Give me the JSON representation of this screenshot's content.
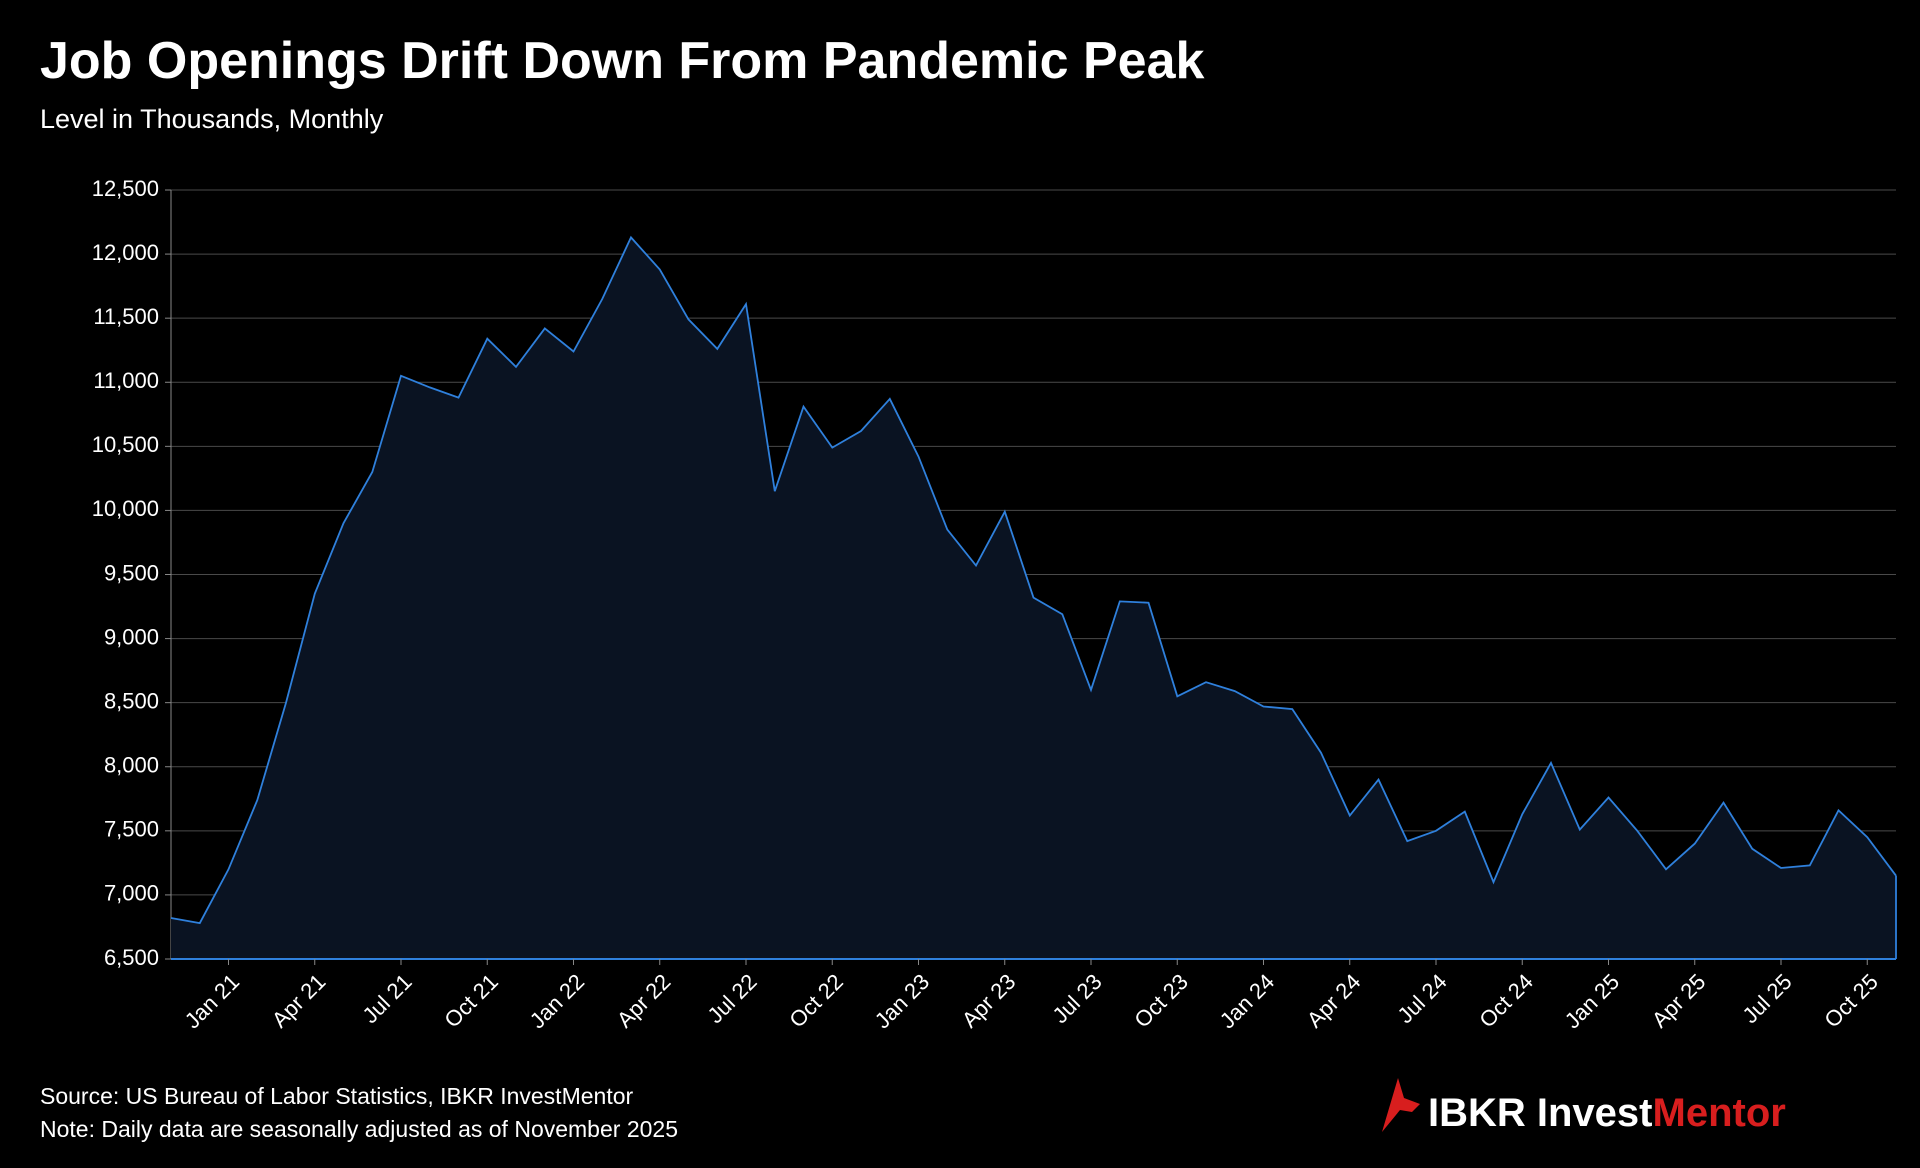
{
  "chart_data": {
    "type": "area",
    "title": "Job Openings Drift Down From Pandemic Peak",
    "subtitle": "Level in Thousands, Monthly",
    "source": "Source: US Bureau of Labor Statistics, IBKR InvestMentor",
    "note": "Note: Daily data are seasonally adjusted as of November  2025",
    "logo": {
      "first": "IBKR Invest",
      "second": "Mentor"
    },
    "categories": [
      null,
      null,
      "Jan 21",
      null,
      null,
      "Apr 21",
      null,
      null,
      "Jul 21",
      null,
      null,
      "Oct 21",
      null,
      null,
      "Jan 22",
      null,
      null,
      "Apr 22",
      null,
      null,
      "Jul 22",
      null,
      null,
      "Oct 22",
      null,
      null,
      "Jan 23",
      null,
      null,
      "Apr 23",
      null,
      null,
      "Jul 23",
      null,
      null,
      "Oct 23",
      null,
      null,
      "Jan 24",
      null,
      null,
      "Apr 24",
      null,
      null,
      "Jul 24",
      null,
      null,
      "Oct 24",
      null,
      null,
      "Jan 25",
      null,
      null,
      "Apr 25",
      null,
      null,
      "Jul 25",
      null,
      null,
      "Oct 25",
      null
    ],
    "values": [
      6820,
      6780,
      7200,
      7740,
      8500,
      9350,
      9900,
      10300,
      11050,
      10960,
      10880,
      11340,
      11120,
      11420,
      11240,
      11650,
      12130,
      11880,
      11490,
      11260,
      11610,
      10150,
      10810,
      10490,
      10620,
      10870,
      10420,
      9850,
      9570,
      9990,
      9320,
      9190,
      8600,
      9290,
      9280,
      8550,
      8660,
      8590,
      8470,
      8450,
      8110,
      7620,
      7900,
      7420,
      7500,
      7650,
      7100,
      7630,
      8030,
      7510,
      7760,
      7500,
      7200,
      7400,
      7720,
      7360,
      7210,
      7230,
      7660,
      7450,
      7150
    ],
    "color": "#2f80dc",
    "fill": "#0a1322",
    "ylim": [
      6500,
      12500
    ],
    "yticks": [
      {
        "value": 6500,
        "label": "6,500"
      },
      {
        "value": 7000,
        "label": "7,000"
      },
      {
        "value": 7500,
        "label": "7,500"
      },
      {
        "value": 8000,
        "label": "8,000"
      },
      {
        "value": 8500,
        "label": "8,500"
      },
      {
        "value": 9000,
        "label": "9,000"
      },
      {
        "value": 9500,
        "label": "9,500"
      },
      {
        "value": 10000,
        "label": "10,000"
      },
      {
        "value": 10500,
        "label": "10,500"
      },
      {
        "value": 11000,
        "label": "11,000"
      },
      {
        "value": 11500,
        "label": "11,500"
      },
      {
        "value": 12000,
        "label": "12,000"
      },
      {
        "value": 12500,
        "label": "12,500"
      }
    ],
    "grid": true
  }
}
